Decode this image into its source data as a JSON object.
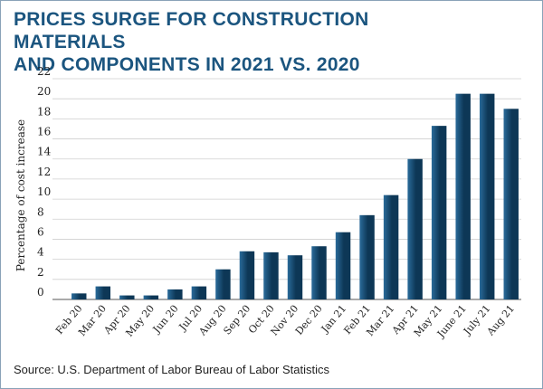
{
  "header": {
    "title_line1": "PRICES SURGE FOR CONSTRUCTION MATERIALS",
    "title_line2": "AND COMPONENTS IN 2021 VS. 2020"
  },
  "footer": {
    "source": "Source: U.S. Department of Labor Bureau of Labor Statistics"
  },
  "colors": {
    "title": "#1b557f",
    "bar_light": "#2a6b9a",
    "bar_dark": "#0d3756",
    "grid": "#cfcfcf",
    "axis": "#555555"
  },
  "chart_data": {
    "type": "bar",
    "title": "PRICES SURGE FOR CONSTRUCTION MATERIALS AND COMPONENTS IN 2021 VS. 2020",
    "ylabel": "Percentage of cost increase",
    "xlabel": "",
    "ylim": [
      0,
      22
    ],
    "yticks": [
      0,
      2,
      4,
      6,
      8,
      10,
      12,
      14,
      16,
      18,
      20,
      22
    ],
    "grid": true,
    "categories": [
      "Feb 20",
      "Mar 20",
      "Apr 20",
      "May 20",
      "Jun 20",
      "Jul 20",
      "Aug 20",
      "Sep 20",
      "Oct 20",
      "Nov 20",
      "Dec 20",
      "Jan 21",
      "Feb 21",
      "Mar 21",
      "Apr 21",
      "May 21",
      "June 21",
      "July 21",
      "Aug 21"
    ],
    "values": [
      0.6,
      1.3,
      0.4,
      0.4,
      1.0,
      1.3,
      3.0,
      4.8,
      4.7,
      4.4,
      5.3,
      6.7,
      8.4,
      10.4,
      14.0,
      17.3,
      20.5,
      20.5,
      19.0
    ]
  }
}
